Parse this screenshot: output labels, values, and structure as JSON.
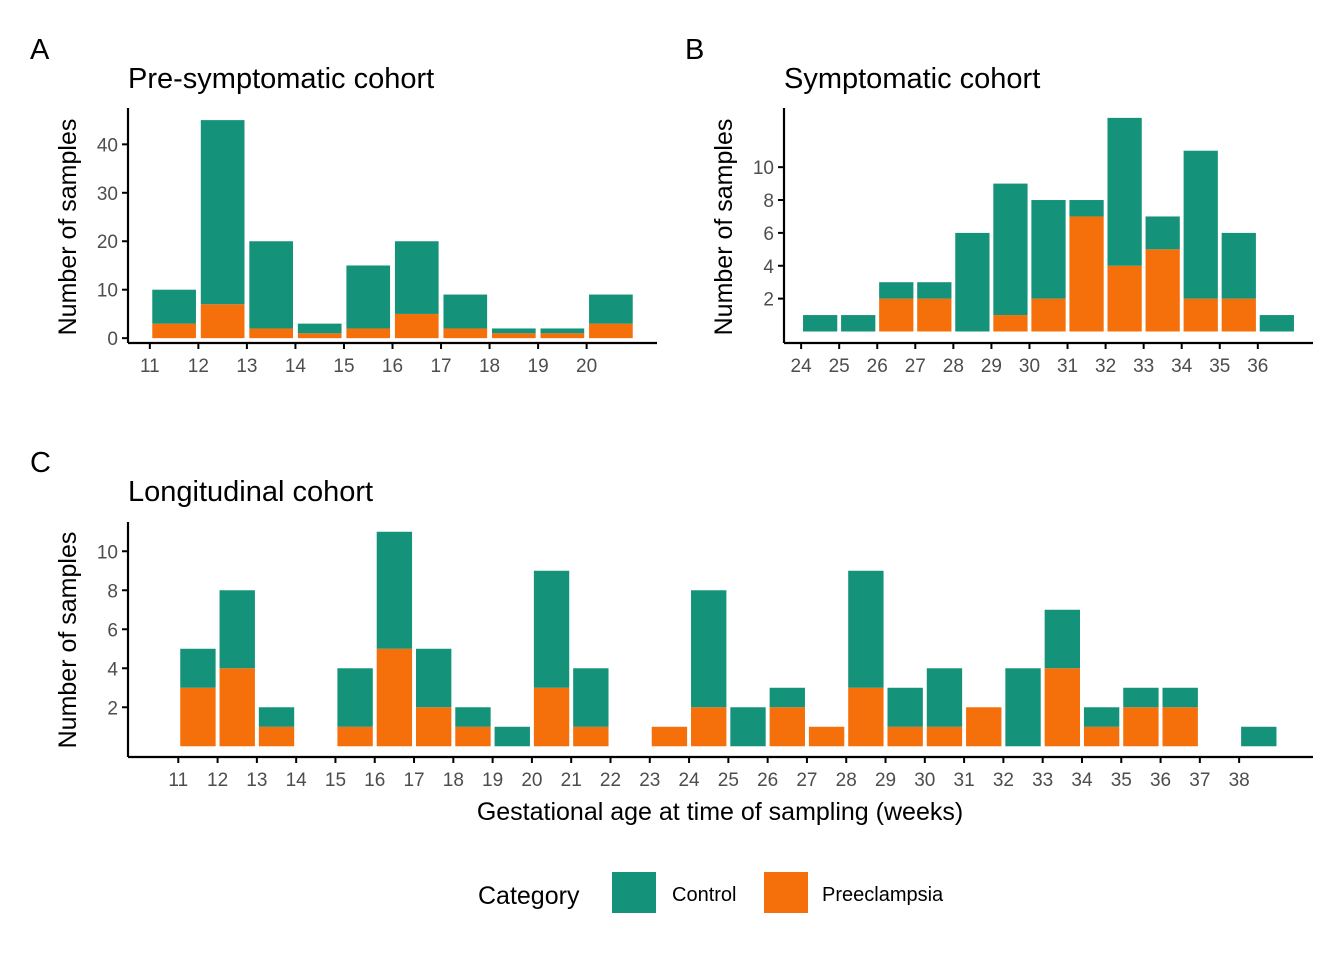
{
  "colors": {
    "control": "#14937A",
    "preeclampsia": "#F5700B",
    "axis": "#000000",
    "tick_text": "#4D4D4D"
  },
  "legend": {
    "title": "Category",
    "items": [
      {
        "key": "control",
        "label": "Control"
      },
      {
        "key": "preeclampsia",
        "label": "Preeclampsia"
      }
    ],
    "position": "bottom"
  },
  "chart_data": [
    {
      "panel": "A",
      "type": "bar",
      "stacked": true,
      "title": "Pre-symptomatic cohort",
      "xlabel": "",
      "ylabel": "Number of samples",
      "x_ticks": [
        11,
        12,
        13,
        14,
        15,
        16,
        17,
        18,
        19,
        20
      ],
      "y_ticks": [
        0,
        10,
        20,
        30,
        40
      ],
      "xlim": [
        10.55,
        21.45
      ],
      "ylim": [
        -1,
        47.5
      ],
      "x": [
        11.5,
        12.5,
        13.5,
        14.5,
        15.5,
        16.5,
        17.5,
        18.5,
        19.5,
        20.5
      ],
      "series": [
        {
          "name": "Control",
          "values": [
            7,
            38,
            18,
            2,
            13,
            15,
            7,
            1,
            1,
            6
          ]
        },
        {
          "name": "Preeclampsia",
          "values": [
            3,
            7,
            2,
            1,
            2,
            5,
            2,
            1,
            1,
            3
          ]
        }
      ]
    },
    {
      "panel": "B",
      "type": "bar",
      "stacked": true,
      "title": "Symptomatic cohort",
      "xlabel": "",
      "ylabel": "Number of samples",
      "x_ticks": [
        24,
        25,
        26,
        27,
        28,
        29,
        30,
        31,
        32,
        33,
        34,
        35,
        36
      ],
      "y_ticks": [
        2,
        4,
        6,
        8,
        10
      ],
      "xlim": [
        23.55,
        37.45
      ],
      "ylim": [
        -0.7,
        13.6
      ],
      "x": [
        24.5,
        25.5,
        26.5,
        27.5,
        28.5,
        29.5,
        30.5,
        31.5,
        32.5,
        33.5,
        34.5,
        35.5,
        36.5
      ],
      "series": [
        {
          "name": "Control",
          "values": [
            1,
            1,
            1,
            1,
            6,
            8,
            6,
            1,
            9,
            2,
            9,
            4,
            1
          ]
        },
        {
          "name": "Preeclampsia",
          "values": [
            0,
            0,
            2,
            2,
            0,
            1,
            2,
            7,
            4,
            5,
            2,
            2,
            0
          ]
        }
      ]
    },
    {
      "panel": "C",
      "type": "bar",
      "stacked": true,
      "title": "Longitudinal cohort",
      "xlabel": "Gestational age at time of sampling (weeks)",
      "ylabel": "Number of samples",
      "x_ticks": [
        11,
        12,
        13,
        14,
        15,
        16,
        17,
        18,
        19,
        20,
        21,
        22,
        23,
        24,
        25,
        26,
        27,
        28,
        29,
        30,
        31,
        32,
        33,
        34,
        35,
        36,
        37,
        38
      ],
      "y_ticks": [
        2,
        4,
        6,
        8,
        10
      ],
      "xlim": [
        9.72,
        39.88
      ],
      "ylim": [
        -0.55,
        11.5
      ],
      "x": [
        11.5,
        12.5,
        13.5,
        15.5,
        16.5,
        17.5,
        18.5,
        19.5,
        20.5,
        21.5,
        23.5,
        24.5,
        25.5,
        26.5,
        27.5,
        28.5,
        29.5,
        30.5,
        31.5,
        32.5,
        33.5,
        34.5,
        35.5,
        36.5,
        38.5
      ],
      "series": [
        {
          "name": "Control",
          "values": [
            2,
            4,
            1,
            3,
            6,
            3,
            1,
            1,
            6,
            3,
            0,
            6,
            2,
            1,
            0,
            6,
            2,
            3,
            0,
            4,
            3,
            1,
            1,
            1,
            1
          ]
        },
        {
          "name": "Preeclampsia",
          "values": [
            3,
            4,
            1,
            1,
            5,
            2,
            1,
            0,
            3,
            1,
            1,
            2,
            0,
            2,
            1,
            3,
            1,
            1,
            2,
            0,
            4,
            1,
            2,
            2,
            0
          ]
        }
      ]
    }
  ]
}
